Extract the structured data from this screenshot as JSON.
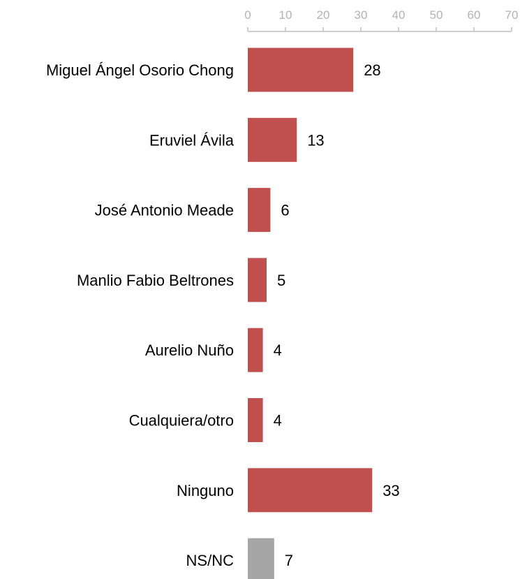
{
  "chart_data": {
    "type": "bar",
    "orientation": "horizontal",
    "categories": [
      "Miguel Ángel Osorio Chong",
      "Eruviel Ávila",
      "José Antonio Meade",
      "Manlio Fabio Beltrones",
      "Aurelio Nuño",
      "Cualquiera/otro",
      "Ninguno",
      "NS/NC"
    ],
    "values": [
      28,
      13,
      6,
      5,
      4,
      4,
      33,
      7
    ],
    "bar_colors": [
      "#c0504d",
      "#c0504d",
      "#c0504d",
      "#c0504d",
      "#c0504d",
      "#c0504d",
      "#c0504d",
      "#a6a6a6"
    ],
    "xlim": [
      0,
      70
    ],
    "x_ticks": [
      0,
      10,
      20,
      30,
      40,
      50,
      60,
      70
    ],
    "axis_position": "top",
    "grid": false,
    "axis_color": "#bfbfbf",
    "title": "",
    "xlabel": "",
    "ylabel": ""
  }
}
